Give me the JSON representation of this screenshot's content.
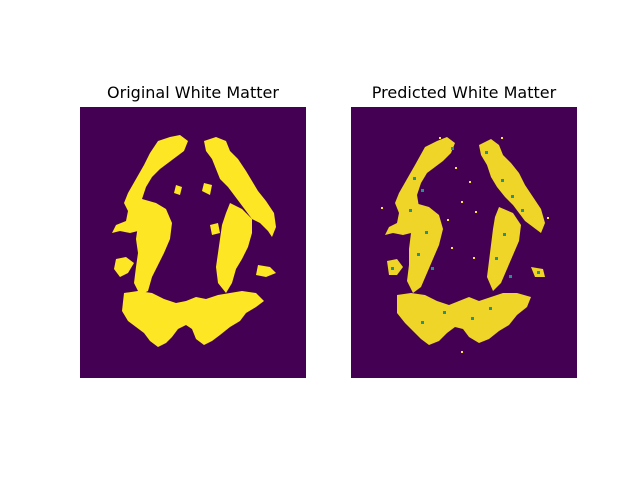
{
  "figure": {
    "panels": [
      {
        "title": "Original White Matter"
      },
      {
        "title": "Predicted White Matter"
      }
    ]
  },
  "colors": {
    "background": "#440154",
    "matter": "#fde725",
    "noise": "#21918c",
    "page": "#ffffff"
  }
}
